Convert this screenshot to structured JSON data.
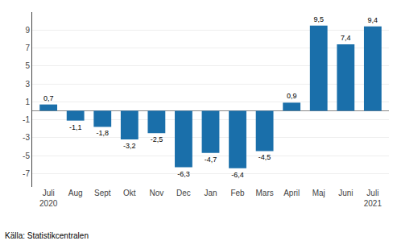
{
  "chart_data": {
    "type": "bar",
    "categories": [
      "Juli\n2020",
      "Aug",
      "Sept",
      "Okt",
      "Nov",
      "Dec",
      "Jan",
      "Feb",
      "Mars",
      "April",
      "Maj",
      "Juni",
      "Juli\n2021"
    ],
    "values": [
      0.7,
      -1.1,
      -1.8,
      -3.2,
      -2.5,
      -6.3,
      -4.7,
      -6.4,
      -4.5,
      0.9,
      9.5,
      7.4,
      9.4
    ],
    "value_labels": [
      "0,7",
      "-1,1",
      "-1,8",
      "-3,2",
      "-2,5",
      "-6,3",
      "-4,7",
      "-6,4",
      "-4,5",
      "0,9",
      "9,5",
      "7,4",
      "9,4"
    ],
    "color": "#1a6faa",
    "ylim": [
      -8.5,
      11.0
    ],
    "yticks": [
      -7,
      -5,
      -3,
      -1,
      1,
      3,
      5,
      7,
      9
    ],
    "grid": true,
    "data_labels": true,
    "annotations": [
      "Källa: Statistikcentralen"
    ]
  }
}
